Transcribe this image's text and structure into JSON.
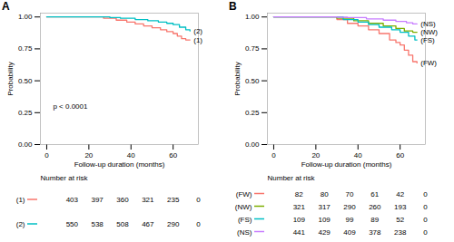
{
  "chart_data": [
    {
      "type": "line",
      "title": "A",
      "x_label": "Follow-up duration (months)",
      "y_label": "Probability",
      "xlim": [
        -3,
        72
      ],
      "xticks": [
        0,
        20,
        40,
        60
      ],
      "ylim": [
        0,
        1.03
      ],
      "yticks": [
        {
          "value": 0,
          "label": "0.00"
        },
        {
          "value": 0.25,
          "label": "0.25"
        },
        {
          "value": 0.5,
          "label": "0.50"
        },
        {
          "value": 0.75,
          "label": "0.75"
        },
        {
          "value": 1,
          "label": "1.00"
        }
      ],
      "grid": false,
      "line_style": "step",
      "annotations": [
        {
          "text": "p < 0.0001",
          "x": 3,
          "y": 0.3
        }
      ],
      "risk_table": {
        "title": "Number at risk",
        "times": [
          12,
          24,
          36,
          48,
          60,
          72
        ]
      },
      "series": [
        {
          "name": "(1)",
          "color": "#F8766D",
          "x": [
            0,
            27,
            33,
            38,
            42,
            46,
            50,
            54,
            57,
            60,
            62,
            64,
            66,
            68
          ],
          "values": [
            1,
            0.99,
            0.975,
            0.96,
            0.945,
            0.93,
            0.915,
            0.9,
            0.885,
            0.87,
            0.85,
            0.83,
            0.82,
            0.82
          ],
          "at_risk": [
            403,
            397,
            360,
            321,
            235,
            0
          ]
        },
        {
          "name": "(2)",
          "color": "#00BFC4",
          "x": [
            0,
            30,
            35,
            42,
            48,
            53,
            57,
            60,
            63,
            66,
            68
          ],
          "values": [
            1,
            0.995,
            0.99,
            0.98,
            0.97,
            0.96,
            0.95,
            0.94,
            0.92,
            0.9,
            0.89
          ],
          "at_risk": [
            550,
            538,
            508,
            467,
            290,
            0
          ]
        }
      ]
    },
    {
      "type": "line",
      "title": "B",
      "x_label": "Follow-up duration (months)",
      "y_label": "Probability",
      "xlim": [
        -3,
        72
      ],
      "xticks": [
        0,
        20,
        40,
        60
      ],
      "ylim": [
        0,
        1.03
      ],
      "yticks": [
        {
          "value": 0,
          "label": "0.00"
        },
        {
          "value": 0.25,
          "label": "0.25"
        },
        {
          "value": 0.5,
          "label": "0.50"
        },
        {
          "value": 0.75,
          "label": "0.75"
        },
        {
          "value": 1,
          "label": "1.00"
        }
      ],
      "grid": false,
      "line_style": "step",
      "annotations": [],
      "risk_table": {
        "title": "Number at risk",
        "times": [
          12,
          24,
          36,
          48,
          60,
          72
        ]
      },
      "series": [
        {
          "name": "(FW)",
          "color": "#F8766D",
          "x": [
            0,
            30,
            35,
            40,
            45,
            50,
            55,
            58,
            60,
            62,
            64,
            66,
            68
          ],
          "values": [
            1,
            0.98,
            0.95,
            0.93,
            0.9,
            0.87,
            0.82,
            0.8,
            0.78,
            0.74,
            0.7,
            0.65,
            0.64
          ],
          "at_risk": [
            82,
            80,
            70,
            61,
            42,
            0
          ]
        },
        {
          "name": "(NW)",
          "color": "#7CAE00",
          "x": [
            0,
            30,
            38,
            45,
            52,
            58,
            62,
            66,
            68
          ],
          "values": [
            1,
            0.99,
            0.97,
            0.95,
            0.93,
            0.91,
            0.89,
            0.88,
            0.88
          ],
          "at_risk": [
            321,
            317,
            290,
            260,
            193,
            0
          ]
        },
        {
          "name": "(FS)",
          "color": "#00BFC4",
          "x": [
            0,
            33,
            40,
            45,
            50,
            56,
            60,
            64,
            67,
            68
          ],
          "values": [
            1,
            0.98,
            0.96,
            0.94,
            0.92,
            0.9,
            0.88,
            0.85,
            0.82,
            0.82
          ],
          "at_risk": [
            109,
            109,
            99,
            89,
            52,
            0
          ]
        },
        {
          "name": "(NS)",
          "color": "#C77CFF",
          "x": [
            0,
            30,
            35,
            44,
            52,
            58,
            63,
            66,
            68
          ],
          "values": [
            1,
            0.998,
            0.995,
            0.985,
            0.975,
            0.965,
            0.955,
            0.945,
            0.945
          ],
          "at_risk": [
            441,
            429,
            409,
            378,
            238,
            0
          ]
        }
      ]
    }
  ]
}
